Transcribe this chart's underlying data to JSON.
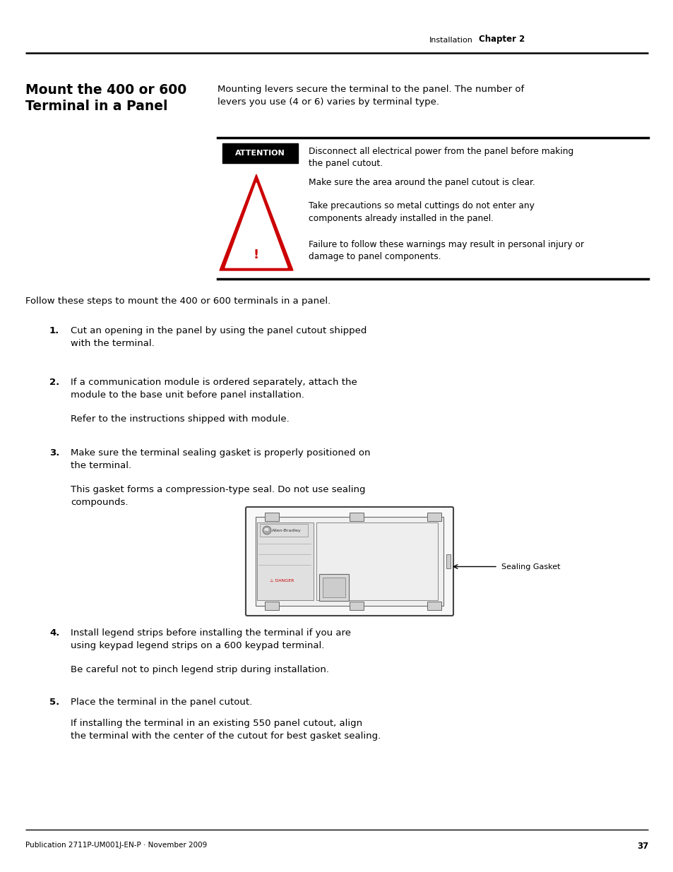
{
  "page_bg": "#ffffff",
  "header_text_installation": "Installation",
  "header_text_chapter": "Chapter 2",
  "footer_pub": "Publication 2711P-UM001J-EN-P · November 2009",
  "footer_page": "37",
  "section_title_line1": "Mount the 400 or 600",
  "section_title_line2": "Terminal in a Panel",
  "intro_text": "Mounting levers secure the terminal to the panel. The number of\nlevers you use (4 or 6) varies by terminal type.",
  "attention_label": "ATTENTION",
  "attention_texts": [
    "Disconnect all electrical power from the panel before making\nthe panel cutout.",
    "Make sure the area around the panel cutout is clear.",
    "Take precautions so metal cuttings do not enter any\ncomponents already installed in the panel.",
    "Failure to follow these warnings may result in personal injury or\ndamage to panel components."
  ],
  "steps_intro": "Follow these steps to mount the 400 or 600 terminals in a panel.",
  "steps": [
    {
      "num": "1.",
      "bold": "Cut an opening in the panel by using the panel cutout shipped\nwith the terminal.",
      "sub": ""
    },
    {
      "num": "2.",
      "bold": "If a communication module is ordered separately, attach the\nmodule to the base unit before panel installation.",
      "sub": "Refer to the instructions shipped with module."
    },
    {
      "num": "3.",
      "bold": "Make sure the terminal sealing gasket is properly positioned on\nthe terminal.",
      "sub": "This gasket forms a compression-type seal. Do not use sealing\ncompounds."
    },
    {
      "num": "4.",
      "bold": "Install legend strips before installing the terminal if you are\nusing keypad legend strips on a 600 keypad terminal.",
      "sub": "Be careful not to pinch legend strip during installation."
    },
    {
      "num": "5.",
      "bold": "Place the terminal in the panel cutout.",
      "sub": "If installing the terminal in an existing 550 panel cutout, align\nthe terminal with the center of the cutout for best gasket sealing."
    }
  ],
  "sealing_label": "Sealing Gasket"
}
